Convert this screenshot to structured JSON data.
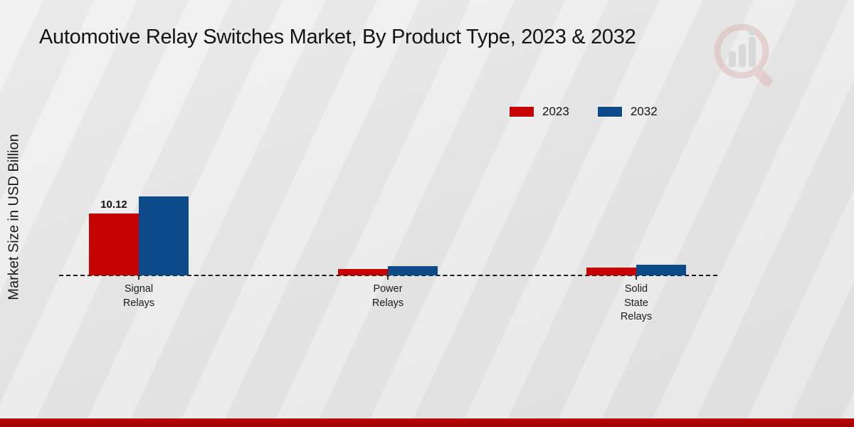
{
  "chart_data": {
    "type": "bar",
    "title": "Automotive Relay Switches Market, By Product Type, 2023 & 2032",
    "xlabel": "",
    "ylabel": "Market Size in USD Billion",
    "categories": [
      "Signal Relays",
      "Power Relays",
      "Solid State Relays"
    ],
    "category_display": [
      "Signal\nRelays",
      "Power\nRelays",
      "Solid\nState\nRelays"
    ],
    "series": [
      {
        "name": "2023",
        "color": "#c60202",
        "values": [
          10.12,
          1.0,
          1.3
        ],
        "labels": [
          "10.12",
          null,
          null
        ]
      },
      {
        "name": "2032",
        "color": "#0d4a8a",
        "values": [
          12.9,
          1.5,
          1.7
        ],
        "labels": [
          null,
          null,
          null
        ]
      }
    ],
    "ylim": [
      0,
      25
    ],
    "grid": false,
    "legend_position": "upper right",
    "axis_style": "dashed baseline only, no y-axis ticks",
    "value_labels_shown": [
      "Signal Relays 2023: 10.12"
    ]
  },
  "branding": {
    "watermark": "magnifier-bar-chart-logo",
    "footer_band_color": "#b70404"
  }
}
